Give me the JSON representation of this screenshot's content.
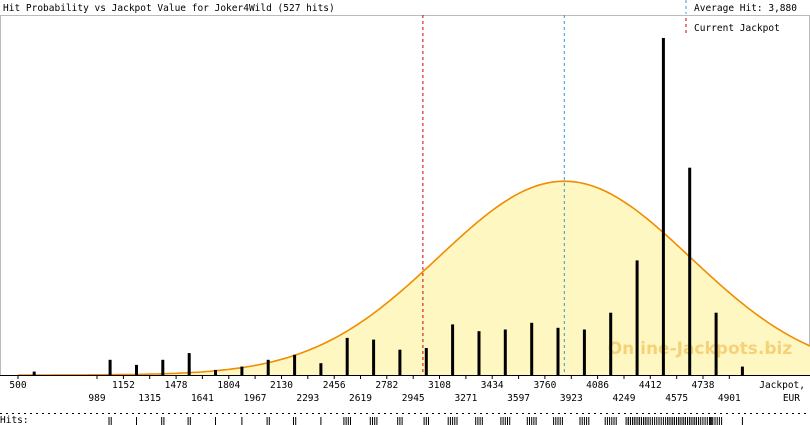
{
  "header": {
    "title": "Hit Probability vs Jackpot Value for Joker4Wild (527 hits)",
    "average_label": "Average Hit: 3,880",
    "current_label": "Current Jackpot"
  },
  "colors": {
    "curve": "#f08c00",
    "curve_fill": "#fff7c2",
    "bars": "#000000",
    "average_line": "#3399cc",
    "current_line": "#cc0000",
    "watermark": "#f5d27a",
    "frame": "#999999"
  },
  "watermark": "Online-Jackpots.biz",
  "chart_data": {
    "type": "bar",
    "title": "Hit Probability vs Jackpot Value for Joker4Wild (527 hits)",
    "xlabel": "Jackpot, EUR",
    "xlabel_line1": "Jackpot,",
    "xlabel_line2": "EUR",
    "xlim": [
      500,
      5400
    ],
    "ylim": [
      0,
      100
    ],
    "average_hit": 3880,
    "current_jackpot": 3005,
    "ticks_upper": [
      "500",
      "1152",
      "1478",
      "1804",
      "2130",
      "2456",
      "2782",
      "3108",
      "3434",
      "3760",
      "4086",
      "4412",
      "4738"
    ],
    "ticks_lower": [
      "989",
      "1315",
      "1641",
      "1967",
      "2293",
      "2619",
      "2945",
      "3271",
      "3597",
      "3923",
      "4249",
      "4575",
      "4901"
    ],
    "bars": [
      {
        "x": 600,
        "value": 1
      },
      {
        "x": 1070,
        "value": 4.5
      },
      {
        "x": 1233,
        "value": 3
      },
      {
        "x": 1396,
        "value": 4.5
      },
      {
        "x": 1559,
        "value": 6.5
      },
      {
        "x": 1722,
        "value": 1.5
      },
      {
        "x": 1885,
        "value": 2.5
      },
      {
        "x": 2048,
        "value": 4.5
      },
      {
        "x": 2211,
        "value": 6
      },
      {
        "x": 2374,
        "value": 3.5
      },
      {
        "x": 2537,
        "value": 11
      },
      {
        "x": 2700,
        "value": 10.5
      },
      {
        "x": 2863,
        "value": 7.5
      },
      {
        "x": 3026,
        "value": 8
      },
      {
        "x": 3189,
        "value": 15
      },
      {
        "x": 3352,
        "value": 13
      },
      {
        "x": 3515,
        "value": 13.5
      },
      {
        "x": 3678,
        "value": 15.5
      },
      {
        "x": 3841,
        "value": 14
      },
      {
        "x": 4004,
        "value": 13.5
      },
      {
        "x": 4167,
        "value": 18.5
      },
      {
        "x": 4330,
        "value": 34
      },
      {
        "x": 4493,
        "value": 100
      },
      {
        "x": 4656,
        "value": 61.5
      },
      {
        "x": 4819,
        "value": 18.5
      },
      {
        "x": 4982,
        "value": 2.5
      }
    ],
    "curve": {
      "mean": 3880,
      "sd": 780,
      "peak": 57.5
    }
  },
  "hits_label": "Hits:"
}
